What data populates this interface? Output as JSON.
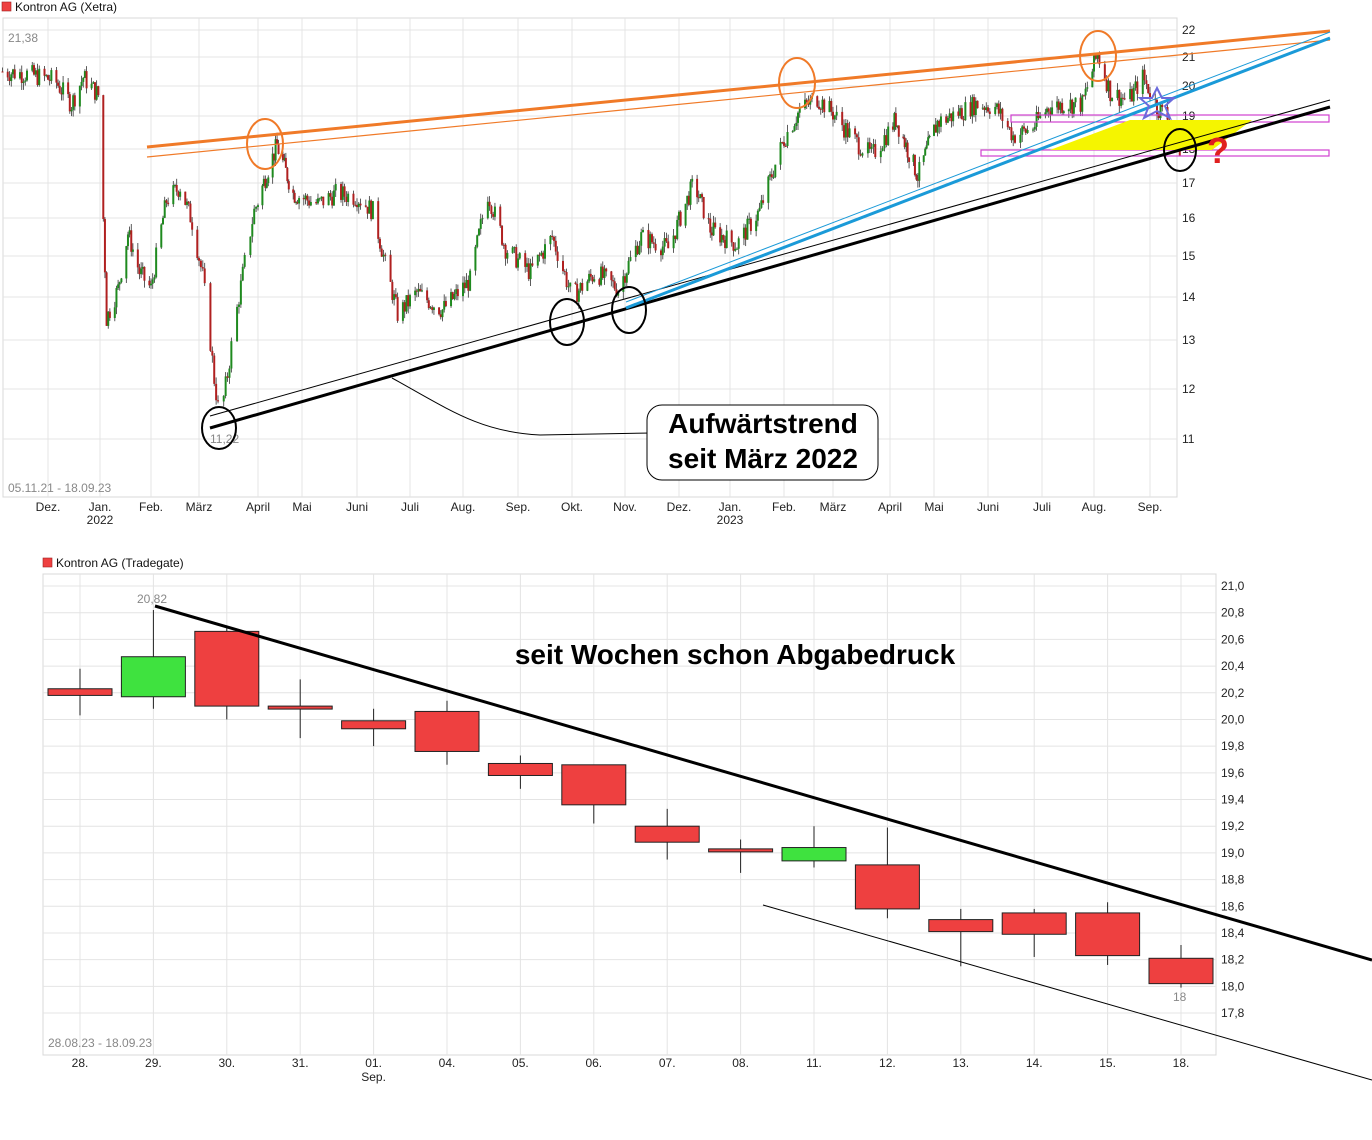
{
  "colors": {
    "up": "#3fe23f",
    "down": "#ee4040",
    "orange": "#f07a28",
    "blue": "#1a9ad8",
    "black": "#000000",
    "magenta": "#d040d0",
    "yellow": "#f5f500",
    "grid": "#e4e4e4",
    "question": "#e02020"
  },
  "chart_data": [
    {
      "type": "candlestick",
      "title": "Kontron AG (Xetra)",
      "date_range": "05.11.21 - 18.09.23",
      "high_label": "21,38",
      "low_label": "11,22",
      "y_ticks": [
        "11",
        "12",
        "13",
        "14",
        "15",
        "16",
        "17",
        "18",
        "19",
        "20",
        "21",
        "22"
      ],
      "x_ticks": [
        {
          "label": "Dez.",
          "sub": ""
        },
        {
          "label": "Jan.",
          "sub": "2022"
        },
        {
          "label": "Feb.",
          "sub": ""
        },
        {
          "label": "März",
          "sub": ""
        },
        {
          "label": "April",
          "sub": ""
        },
        {
          "label": "Mai",
          "sub": ""
        },
        {
          "label": "Juni",
          "sub": ""
        },
        {
          "label": "Juli",
          "sub": ""
        },
        {
          "label": "Aug.",
          "sub": ""
        },
        {
          "label": "Sep.",
          "sub": ""
        },
        {
          "label": "Okt.",
          "sub": ""
        },
        {
          "label": "Nov.",
          "sub": ""
        },
        {
          "label": "Dez.",
          "sub": ""
        },
        {
          "label": "Jan.",
          "sub": "2023"
        },
        {
          "label": "Feb.",
          "sub": ""
        },
        {
          "label": "März",
          "sub": ""
        },
        {
          "label": "April",
          "sub": ""
        },
        {
          "label": "Mai",
          "sub": ""
        },
        {
          "label": "Juni",
          "sub": ""
        },
        {
          "label": "Juli",
          "sub": ""
        },
        {
          "label": "Aug.",
          "sub": ""
        },
        {
          "label": "Sep.",
          "sub": ""
        }
      ],
      "price_path": [
        [
          "2021-11-05",
          20.5
        ],
        [
          "2021-11-20",
          20.4
        ],
        [
          "2021-12-05",
          20.2
        ],
        [
          "2021-12-15",
          19.4
        ],
        [
          "2021-12-22",
          20.3
        ],
        [
          "2021-12-31",
          19.7
        ],
        [
          "2022-01-05",
          13.5
        ],
        [
          "2022-01-12",
          14.2
        ],
        [
          "2022-01-18",
          15.6
        ],
        [
          "2022-01-25",
          14.6
        ],
        [
          "2022-02-01",
          14.2
        ],
        [
          "2022-02-10",
          16.5
        ],
        [
          "2022-02-18",
          16.9
        ],
        [
          "2022-02-25",
          15.9
        ],
        [
          "2022-03-03",
          14.5
        ],
        [
          "2022-03-09",
          12.2
        ],
        [
          "2022-03-12",
          11.35
        ],
        [
          "2022-03-16",
          12.3
        ],
        [
          "2022-03-22",
          14.0
        ],
        [
          "2022-03-30",
          16.2
        ],
        [
          "2022-04-07",
          17.3
        ],
        [
          "2022-04-14",
          18.1
        ],
        [
          "2022-04-25",
          16.7
        ],
        [
          "2022-05-10",
          16.4
        ],
        [
          "2022-05-20",
          16.7
        ],
        [
          "2022-06-01",
          16.6
        ],
        [
          "2022-06-10",
          16.2
        ],
        [
          "2022-06-17",
          14.8
        ],
        [
          "2022-06-24",
          13.6
        ],
        [
          "2022-07-05",
          14.1
        ],
        [
          "2022-07-20",
          13.7
        ],
        [
          "2022-08-05",
          14.4
        ],
        [
          "2022-08-15",
          16.7
        ],
        [
          "2022-08-25",
          15.2
        ],
        [
          "2022-09-08",
          14.6
        ],
        [
          "2022-09-20",
          15.5
        ],
        [
          "2022-10-01",
          14.0
        ],
        [
          "2022-10-15",
          14.6
        ],
        [
          "2022-10-28",
          14.2
        ],
        [
          "2022-11-10",
          15.5
        ],
        [
          "2022-11-25",
          15.2
        ],
        [
          "2022-12-10",
          17.0
        ],
        [
          "2022-12-20",
          15.7
        ],
        [
          "2023-01-05",
          15.3
        ],
        [
          "2023-01-18",
          16.2
        ],
        [
          "2023-02-01",
          18.3
        ],
        [
          "2023-02-10",
          19.2
        ],
        [
          "2023-02-20",
          19.6
        ],
        [
          "2023-03-01",
          19.1
        ],
        [
          "2023-03-12",
          18.3
        ],
        [
          "2023-03-22",
          17.8
        ],
        [
          "2023-04-05",
          18.9
        ],
        [
          "2023-04-20",
          17.2
        ],
        [
          "2023-05-03",
          18.8
        ],
        [
          "2023-05-15",
          19.1
        ],
        [
          "2023-05-25",
          19.4
        ],
        [
          "2023-06-05",
          19.3
        ],
        [
          "2023-06-15",
          18.4
        ],
        [
          "2023-06-25",
          18.6
        ],
        [
          "2023-07-05",
          19.3
        ],
        [
          "2023-07-15",
          19.4
        ],
        [
          "2023-07-25",
          19.4
        ],
        [
          "2023-08-03",
          21.1
        ],
        [
          "2023-08-10",
          19.8
        ],
        [
          "2023-08-20",
          19.5
        ],
        [
          "2023-08-28",
          20.3
        ],
        [
          "2023-09-05",
          19.3
        ],
        [
          "2023-09-12",
          18.9
        ],
        [
          "2023-09-18",
          18.0
        ]
      ],
      "annotation": [
        "Aufwärtstrend",
        "seit März 2022"
      ],
      "question_mark": "?"
    },
    {
      "type": "candlestick",
      "title": "Kontron AG (Tradegate)",
      "date_range": "28.08.23 - 18.09.23",
      "high_label": "20,82",
      "low_label": "18",
      "y_ticks": [
        "17,8",
        "18,0",
        "18,2",
        "18,4",
        "18,6",
        "18,8",
        "19,0",
        "19,2",
        "19,4",
        "19,6",
        "19,8",
        "20,0",
        "20,2",
        "20,4",
        "20,6",
        "20,8",
        "21,0"
      ],
      "x_ticks": [
        {
          "label": "28.",
          "sub": ""
        },
        {
          "label": "29.",
          "sub": ""
        },
        {
          "label": "30.",
          "sub": ""
        },
        {
          "label": "31.",
          "sub": ""
        },
        {
          "label": "01.",
          "sub": "Sep."
        },
        {
          "label": "04.",
          "sub": ""
        },
        {
          "label": "05.",
          "sub": ""
        },
        {
          "label": "06.",
          "sub": ""
        },
        {
          "label": "07.",
          "sub": ""
        },
        {
          "label": "08.",
          "sub": ""
        },
        {
          "label": "11.",
          "sub": ""
        },
        {
          "label": "12.",
          "sub": ""
        },
        {
          "label": "13.",
          "sub": ""
        },
        {
          "label": "14.",
          "sub": ""
        },
        {
          "label": "15.",
          "sub": ""
        },
        {
          "label": "18.",
          "sub": ""
        }
      ],
      "candles": [
        {
          "date": "28.08.",
          "open": 20.23,
          "high": 20.38,
          "low": 20.03,
          "close": 20.18
        },
        {
          "date": "29.08.",
          "open": 20.17,
          "high": 20.82,
          "low": 20.08,
          "close": 20.47
        },
        {
          "date": "30.08.",
          "open": 20.66,
          "high": 20.7,
          "low": 20.0,
          "close": 20.1
        },
        {
          "date": "31.08.",
          "open": 20.1,
          "high": 20.3,
          "low": 19.86,
          "close": 20.08
        },
        {
          "date": "01.09.",
          "open": 19.99,
          "high": 20.08,
          "low": 19.8,
          "close": 19.93
        },
        {
          "date": "04.09.",
          "open": 20.06,
          "high": 20.14,
          "low": 19.66,
          "close": 19.76
        },
        {
          "date": "05.09.",
          "open": 19.67,
          "high": 19.73,
          "low": 19.48,
          "close": 19.58
        },
        {
          "date": "06.09.",
          "open": 19.66,
          "high": 19.66,
          "low": 19.22,
          "close": 19.36
        },
        {
          "date": "07.09.",
          "open": 19.2,
          "high": 19.33,
          "low": 18.95,
          "close": 19.08
        },
        {
          "date": "08.09.",
          "open": 19.03,
          "high": 19.1,
          "low": 18.85,
          "close": 19.01
        },
        {
          "date": "11.09.",
          "open": 18.94,
          "high": 19.2,
          "low": 18.89,
          "close": 19.04
        },
        {
          "date": "12.09.",
          "open": 18.91,
          "high": 19.19,
          "low": 18.51,
          "close": 18.58
        },
        {
          "date": "13.09.",
          "open": 18.5,
          "high": 18.58,
          "low": 18.15,
          "close": 18.41
        },
        {
          "date": "14.09.",
          "open": 18.55,
          "high": 18.58,
          "low": 18.22,
          "close": 18.39
        },
        {
          "date": "15.09.",
          "open": 18.55,
          "high": 18.63,
          "low": 18.16,
          "close": 18.23
        },
        {
          "date": "18.09.",
          "open": 18.21,
          "high": 18.31,
          "low": 17.99,
          "close": 18.02
        }
      ],
      "annotation": "seit Wochen schon Abgabedruck"
    }
  ]
}
